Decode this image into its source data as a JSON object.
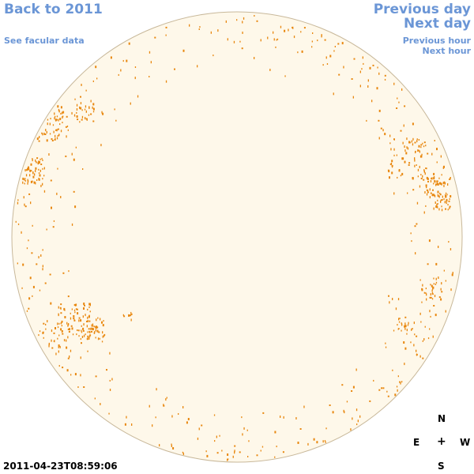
{
  "nav": {
    "back_label": "Back to 2011",
    "facular_label": "See facular data",
    "prev_day_label": "Previous day",
    "next_day_label": "Next day",
    "prev_hour_label": "Previous hour",
    "next_hour_label": "Next hour"
  },
  "compass": {
    "north": "N",
    "east": "E",
    "center": "+",
    "west": "W",
    "south": "S"
  },
  "timestamp": "2011-04-23T08:59:06",
  "colors": {
    "link": "#6b96d6",
    "disk_fill": "#fef8ea",
    "disk_outline": "#c8b89a",
    "faculae": "#e8870e"
  }
}
